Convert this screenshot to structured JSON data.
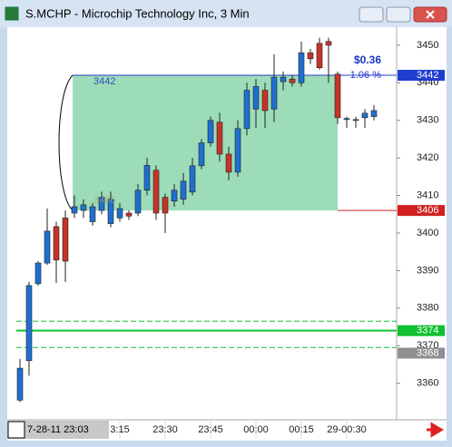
{
  "chart_data": {
    "type": "candlestick",
    "title": "S.MCHP - Microchip Technology Inc, 3 Min",
    "categories": [
      null,
      null,
      null,
      null,
      null,
      null,
      null,
      null,
      null,
      null,
      null,
      "3:15",
      null,
      null,
      null,
      null,
      "23:30",
      null,
      null,
      null,
      null,
      "23:45",
      null,
      null,
      null,
      null,
      "00:00",
      null,
      null,
      null,
      null,
      "00:15",
      null,
      null,
      null,
      null,
      "29-00:30",
      null,
      null,
      null
    ],
    "cursor_label": "7-28-11 23:03",
    "open": [
      3355.5,
      3366,
      3386.5,
      3392,
      3401.7,
      3404,
      3405.3,
      3406,
      3403,
      3406,
      3402.5,
      3404,
      3405.3,
      3405.3,
      3411.4,
      3416.7,
      3409.5,
      3408.5,
      3409,
      3410.9,
      3417.9,
      3424,
      3429.5,
      3421,
      3416.2,
      3427.8,
      3433,
      3438,
      3433,
      3440.3,
      3441,
      3440,
      3448,
      3450.5,
      3451,
      3442.3,
      3430.2,
      3430,
      3430.7,
      3431
    ],
    "high": [
      3366.5,
      3387,
      3392.5,
      3406.5,
      3403,
      3406,
      3410,
      3409,
      3408,
      3411,
      3411,
      3408,
      3406,
      3413,
      3420,
      3418,
      3410.5,
      3413,
      3416,
      3420,
      3425,
      3431,
      3432,
      3423,
      3430,
      3440,
      3441,
      3440,
      3447.6,
      3443,
      3442,
      3451,
      3449,
      3452,
      3452,
      3443,
      3431,
      3431,
      3433,
      3434
    ],
    "low": [
      3355,
      3362,
      3386,
      3391.5,
      3386.7,
      3387,
      3404,
      3404,
      3402,
      3405,
      3401.5,
      3403,
      3403.5,
      3404.5,
      3410,
      3403.5,
      3400,
      3407,
      3407.5,
      3410,
      3417,
      3423,
      3419,
      3414,
      3415,
      3426,
      3428,
      3428,
      3429.5,
      3438,
      3439,
      3439,
      3445,
      3443.5,
      3440,
      3429,
      3428,
      3428,
      3428,
      3430
    ],
    "close": [
      3364,
      3386,
      3392,
      3400.5,
      3392.8,
      3392.5,
      3407,
      3407.5,
      3407,
      3409.5,
      3409,
      3406.5,
      3404.5,
      3411.4,
      3418,
      3405.3,
      3405.3,
      3411.4,
      3413.8,
      3417.9,
      3424,
      3430,
      3421,
      3416.2,
      3427.8,
      3438,
      3439,
      3432.6,
      3441.5,
      3441.5,
      3440,
      3448,
      3446.4,
      3444,
      3450,
      3430.7,
      3430.5,
      3430.2,
      3431.9,
      3432.6
    ],
    "up_color": "#1f6fd0",
    "down_color": "#c83228",
    "ylim": [
      3350.5,
      3454.8
    ],
    "yticks": [
      3360,
      3370,
      3380,
      3390,
      3400,
      3410,
      3420,
      3430,
      3440,
      3450
    ],
    "levels": [
      {
        "value": 3442,
        "color": "#1f3fd0"
      },
      {
        "value": 3406,
        "color": "#d02020"
      },
      {
        "value": 3374,
        "color": "#10c030"
      },
      {
        "value": 3368,
        "color": "#909090"
      }
    ],
    "bands": [
      3376.5,
      3369.5
    ],
    "zone_labels": [
      "3442",
      "3406"
    ],
    "change": "$0.36",
    "change_pct": "1.06 %"
  }
}
